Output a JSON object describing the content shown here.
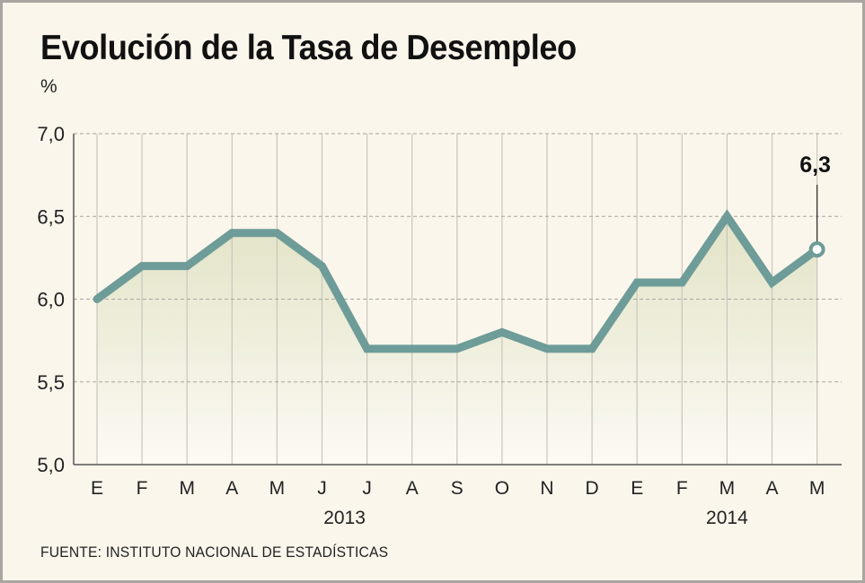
{
  "chart_data": {
    "type": "area",
    "title": "Evolución de la Tasa de Desempleo",
    "ylabel": "%",
    "ylim": [
      5.0,
      7.0
    ],
    "yticks": [
      "5,0",
      "5,5",
      "6,0",
      "6,5",
      "7,0"
    ],
    "ytick_values": [
      5.0,
      5.5,
      6.0,
      6.5,
      7.0
    ],
    "categories": [
      "E",
      "F",
      "M",
      "A",
      "M",
      "J",
      "J",
      "A",
      "S",
      "O",
      "N",
      "D",
      "E",
      "F",
      "M",
      "A",
      "M"
    ],
    "year_labels": [
      {
        "label": "2013",
        "from": 0,
        "to": 11
      },
      {
        "label": "2014",
        "from": 12,
        "to": 16
      }
    ],
    "values": [
      6.0,
      6.2,
      6.2,
      6.4,
      6.4,
      6.2,
      5.7,
      5.7,
      5.7,
      5.8,
      5.7,
      5.7,
      6.1,
      6.1,
      6.5,
      6.1,
      6.3
    ],
    "annotation": {
      "index": 16,
      "label": "6,3"
    },
    "grid": true,
    "line_color": "#6e9c98",
    "fill_color": "#e4e5cc"
  },
  "source": "FUENTE: INSTITUTO NACIONAL DE ESTADÍSTICAS"
}
